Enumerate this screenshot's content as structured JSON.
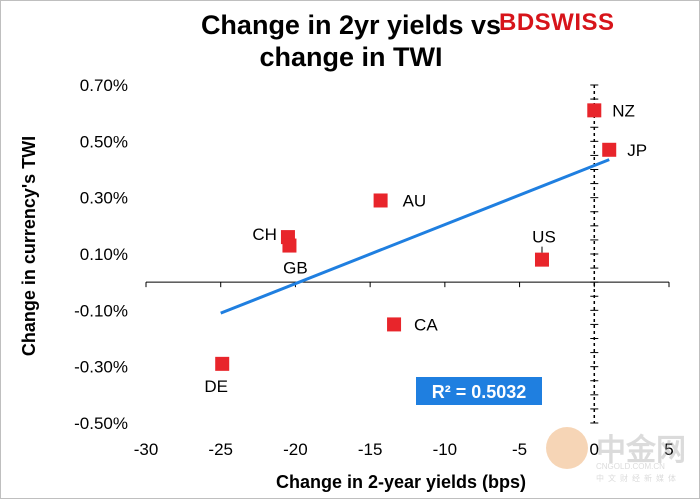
{
  "brand": {
    "part1": "BD",
    "part2": "SWISS"
  },
  "watermark": {
    "name": "中金网",
    "domain": "CNGOLD.COM.CN",
    "tagline": "中文财经新媒体"
  },
  "chart_data": {
    "type": "scatter",
    "title_line1": "Change in 2yr yields vs",
    "title_line2": "change in TWI",
    "xlabel": "Change in 2-year yields (bps)",
    "ylabel": "Change in currency's  TWI",
    "xlim": [
      -30,
      5
    ],
    "ylim": [
      -0.5,
      0.7
    ],
    "x_ticks": [
      -30,
      -25,
      -20,
      -15,
      -10,
      -5,
      0,
      5
    ],
    "x_tick_labels": [
      "-30",
      "-25",
      "-20",
      "-15",
      "-10",
      "-5",
      "0",
      "5"
    ],
    "y_ticks": [
      0.7,
      0.5,
      0.3,
      0.1,
      -0.1,
      -0.3,
      -0.5
    ],
    "y_tick_labels": [
      "0.70%",
      "0.50%",
      "0.30%",
      "0.10%",
      "-0.10%",
      "-0.30%",
      "-0.50%"
    ],
    "points": [
      {
        "label": "NZ",
        "x": 0.0,
        "y": 0.61
      },
      {
        "label": "JP",
        "x": 1.0,
        "y": 0.47
      },
      {
        "label": "AU",
        "x": -14.3,
        "y": 0.29
      },
      {
        "label": "CH",
        "x": -20.5,
        "y": 0.16
      },
      {
        "label": "GB",
        "x": -20.4,
        "y": 0.13
      },
      {
        "label": "US",
        "x": -3.5,
        "y": 0.08
      },
      {
        "label": "CA",
        "x": -13.4,
        "y": -0.15
      },
      {
        "label": "DE",
        "x": -24.9,
        "y": -0.29
      }
    ],
    "trendline": {
      "x": [
        -25,
        1
      ],
      "y": [
        -0.11,
        0.435
      ]
    },
    "r_squared_label": "R² = 0.5032",
    "colors": {
      "marker": "#e8252b",
      "trendline": "#1f7fe0",
      "r2_box": "#1f7fe0"
    }
  }
}
